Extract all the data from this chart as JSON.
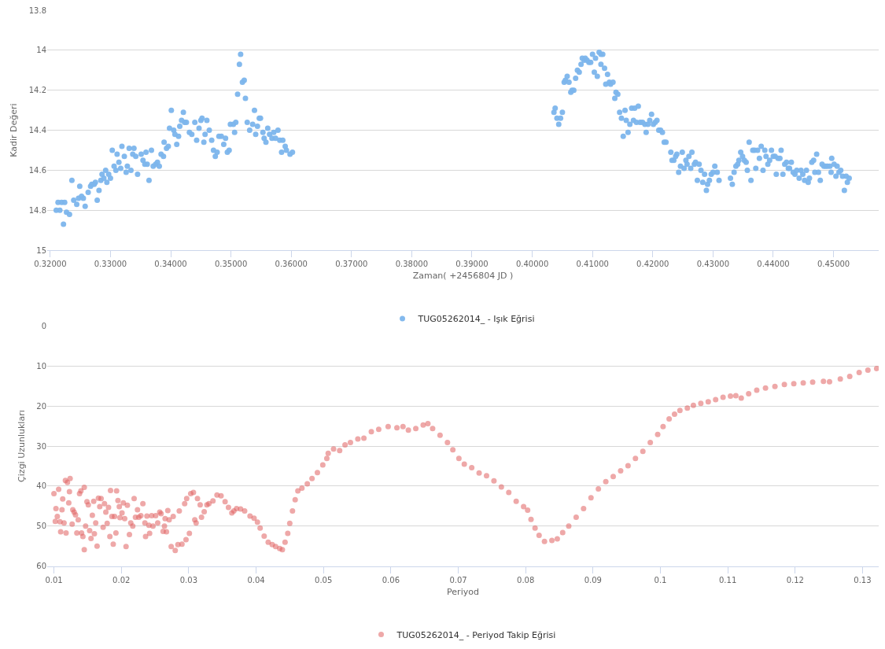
{
  "chart_data": [
    {
      "type": "scatter",
      "xlabel": "Zaman( +2456804 JD )",
      "ylabel": "Kadir Değeri",
      "marker": "circle",
      "grid": "y",
      "legend": "bottom",
      "xlim": [
        0.3195,
        0.4575
      ],
      "xticks": [
        {
          "value": 0.32,
          "label": "0.32000"
        },
        {
          "value": 0.33,
          "label": "0.33000"
        },
        {
          "value": 0.34,
          "label": "0.34000"
        },
        {
          "value": 0.35,
          "label": "0.35000"
        },
        {
          "value": 0.36,
          "label": "0.36000"
        },
        {
          "value": 0.37,
          "label": "0.37000"
        },
        {
          "value": 0.38,
          "label": "0.38000"
        },
        {
          "value": 0.39,
          "label": "0.39000"
        },
        {
          "value": 0.4,
          "label": "0.40000"
        },
        {
          "value": 0.41,
          "label": "0.41000"
        },
        {
          "value": 0.42,
          "label": "0.42000"
        },
        {
          "value": 0.43,
          "label": "0.43000"
        },
        {
          "value": 0.44,
          "label": "0.44000"
        },
        {
          "value": 0.45,
          "label": "0.45000"
        }
      ],
      "ylim": [
        15,
        13.8
      ],
      "yticks": [
        13.8,
        14,
        14.2,
        14.4,
        14.6,
        14.8,
        15
      ],
      "series": [
        {
          "name": "TUG05262014_ - Işık Eğrisi",
          "color": "#7cb5ec",
          "x": [
            0.321,
            0.3213,
            0.3216,
            0.3219,
            0.3222,
            0.3224,
            0.3227,
            0.3232,
            0.3236,
            0.3239,
            0.3244,
            0.3247,
            0.3249,
            0.3252,
            0.3255,
            0.3258,
            0.3263,
            0.3267,
            0.3269,
            0.3273,
            0.3275,
            0.3278,
            0.3281,
            0.3284,
            0.3286,
            0.3289,
            0.3292,
            0.3294,
            0.3297,
            0.33,
            0.3303,
            0.3306,
            0.3309,
            0.3311,
            0.3314,
            0.3317,
            0.3319,
            0.3323,
            0.3326,
            0.3328,
            0.3331,
            0.3334,
            0.3337,
            0.3339,
            0.3342,
            0.3345,
            0.3351,
            0.3354,
            0.3357,
            0.3359,
            0.3361,
            0.3364,
            0.3368,
            0.3371,
            0.3375,
            0.3378,
            0.3381,
            0.3384,
            0.3388,
            0.3389,
            0.3393,
            0.3396,
            0.3398,
            0.3401,
            0.3405,
            0.3407,
            0.341,
            0.3413,
            0.3415,
            0.3418,
            0.3421,
            0.3423,
            0.3426,
            0.3431,
            0.3435,
            0.344,
            0.3443,
            0.3447,
            0.345,
            0.3452,
            0.3455,
            0.3457,
            0.346,
            0.3464,
            0.3468,
            0.3471,
            0.3474,
            0.3477,
            0.348,
            0.3484,
            0.3488,
            0.3491,
            0.3494,
            0.3497,
            0.3499,
            0.3504,
            0.3506,
            0.3508,
            0.3511,
            0.3514,
            0.3516,
            0.3519,
            0.3522,
            0.3524,
            0.3527,
            0.3531,
            0.3536,
            0.3539,
            0.3541,
            0.3544,
            0.3547,
            0.3549,
            0.3553,
            0.3555,
            0.3558,
            0.3561,
            0.3564,
            0.3568,
            0.3571,
            0.3574,
            0.3578,
            0.3581,
            0.3584,
            0.3586,
            0.359,
            0.3592,
            0.3598,
            0.3602,
            0.4036,
            0.4038,
            0.4041,
            0.4044,
            0.4047,
            0.405,
            0.4053,
            0.4055,
            0.4058,
            0.4061,
            0.4064,
            0.4066,
            0.4069,
            0.4072,
            0.4075,
            0.4078,
            0.4081,
            0.4083,
            0.4086,
            0.4088,
            0.4091,
            0.4094,
            0.4097,
            0.41,
            0.4103,
            0.4105,
            0.4108,
            0.4111,
            0.4114,
            0.4117,
            0.4114,
            0.412,
            0.4122,
            0.4125,
            0.4128,
            0.413,
            0.4134,
            0.4137,
            0.4139,
            0.4142,
            0.4145,
            0.4148,
            0.4151,
            0.4154,
            0.4156,
            0.4159,
            0.4162,
            0.4165,
            0.4168,
            0.417,
            0.4173,
            0.4176,
            0.4179,
            0.4183,
            0.4187,
            0.4189,
            0.4192,
            0.4195,
            0.4198,
            0.4201,
            0.4204,
            0.4207,
            0.421,
            0.4213,
            0.4216,
            0.4219,
            0.4222,
            0.423,
            0.4232,
            0.4235,
            0.4238,
            0.424,
            0.4243,
            0.4246,
            0.4249,
            0.4252,
            0.4255,
            0.4257,
            0.426,
            0.4263,
            0.4265,
            0.4269,
            0.4271,
            0.4274,
            0.4277,
            0.428,
            0.4283,
            0.4286,
            0.4289,
            0.4291,
            0.4294,
            0.4297,
            0.43,
            0.4303,
            0.4307,
            0.431,
            0.4329,
            0.4332,
            0.4335,
            0.4338,
            0.4341,
            0.4343,
            0.4346,
            0.4349,
            0.4352,
            0.4355,
            0.4357,
            0.436,
            0.4363,
            0.4366,
            0.4369,
            0.4371,
            0.4374,
            0.4377,
            0.438,
            0.4383,
            0.4386,
            0.4388,
            0.4391,
            0.4394,
            0.4397,
            0.44,
            0.4403,
            0.4405,
            0.4408,
            0.4411,
            0.4413,
            0.4416,
            0.4419,
            0.4422,
            0.4425,
            0.4427,
            0.443,
            0.4433,
            0.4436,
            0.4439,
            0.4443,
            0.4446,
            0.4449,
            0.4452,
            0.4455,
            0.4458,
            0.446,
            0.4464,
            0.4467,
            0.4469,
            0.4472,
            0.4475,
            0.4478,
            0.4481,
            0.4484,
            0.4487,
            0.449,
            0.4494,
            0.4496,
            0.4497,
            0.4501,
            0.4504,
            0.4506,
            0.4509,
            0.4512,
            0.4515,
            0.4518,
            0.4521,
            0.4523,
            0.4526
          ],
          "values": [
            14.8,
            14.76,
            14.8,
            14.76,
            14.87,
            14.76,
            14.81,
            14.82,
            14.65,
            14.75,
            14.77,
            14.74,
            14.68,
            14.73,
            14.74,
            14.78,
            14.71,
            14.68,
            14.67,
            14.67,
            14.66,
            14.75,
            14.7,
            14.65,
            14.62,
            14.64,
            14.6,
            14.66,
            14.62,
            14.64,
            14.5,
            14.58,
            14.6,
            14.52,
            14.56,
            14.59,
            14.48,
            14.53,
            14.61,
            14.58,
            14.49,
            14.6,
            14.52,
            14.49,
            14.53,
            14.62,
            14.52,
            14.55,
            14.57,
            14.51,
            14.57,
            14.65,
            14.5,
            14.58,
            14.57,
            14.56,
            14.58,
            14.52,
            14.53,
            14.46,
            14.49,
            14.48,
            14.39,
            14.3,
            14.4,
            14.42,
            14.47,
            14.43,
            14.38,
            14.35,
            14.31,
            14.36,
            14.36,
            14.41,
            14.42,
            14.36,
            14.45,
            14.39,
            14.35,
            14.34,
            14.46,
            14.42,
            14.35,
            14.4,
            14.45,
            14.5,
            14.53,
            14.51,
            14.43,
            14.43,
            14.47,
            14.44,
            14.51,
            14.5,
            14.37,
            14.37,
            14.41,
            14.36,
            14.22,
            14.07,
            14.02,
            14.16,
            14.15,
            14.24,
            14.36,
            14.4,
            14.37,
            14.3,
            14.42,
            14.38,
            14.34,
            14.34,
            14.41,
            14.44,
            14.46,
            14.39,
            14.42,
            14.44,
            14.41,
            14.44,
            14.4,
            14.45,
            14.51,
            14.45,
            14.48,
            14.5,
            14.52,
            14.51,
            14.31,
            14.29,
            14.34,
            14.37,
            14.34,
            14.31,
            14.16,
            14.15,
            14.13,
            14.16,
            14.21,
            14.2,
            14.2,
            14.14,
            14.1,
            14.11,
            14.07,
            14.04,
            14.05,
            14.04,
            14.05,
            14.06,
            14.06,
            14.02,
            14.11,
            14.04,
            14.13,
            14.01,
            14.02,
            14.02,
            14.07,
            14.09,
            14.17,
            14.12,
            14.16,
            14.17,
            14.16,
            14.24,
            14.21,
            14.22,
            14.31,
            14.34,
            14.43,
            14.3,
            14.35,
            14.41,
            14.37,
            14.29,
            14.35,
            14.29,
            14.36,
            14.28,
            14.36,
            14.36,
            14.37,
            14.41,
            14.37,
            14.35,
            14.32,
            14.37,
            14.36,
            14.35,
            14.4,
            14.4,
            14.41,
            14.46,
            14.46,
            14.51,
            14.55,
            14.55,
            14.53,
            14.52,
            14.61,
            14.58,
            14.51,
            14.59,
            14.55,
            14.57,
            14.53,
            14.59,
            14.51,
            14.57,
            14.56,
            14.65,
            14.57,
            14.6,
            14.66,
            14.62,
            14.7,
            14.67,
            14.65,
            14.62,
            14.61,
            14.58,
            14.61,
            14.65,
            14.64,
            14.67,
            14.61,
            14.58,
            14.57,
            14.55,
            14.51,
            14.53,
            14.55,
            14.56,
            14.6,
            14.46,
            14.65,
            14.5,
            14.5,
            14.59,
            14.5,
            14.54,
            14.48,
            14.6,
            14.5,
            14.53,
            14.57,
            14.55,
            14.5,
            14.53,
            14.53,
            14.62,
            14.54,
            14.54,
            14.5,
            14.62,
            14.57,
            14.56,
            14.59,
            14.59,
            14.56,
            14.61,
            14.62,
            14.6,
            14.64,
            14.6,
            14.62,
            14.65,
            14.6,
            14.66,
            14.64,
            14.56,
            14.55,
            14.61,
            14.52,
            14.61,
            14.65,
            14.57,
            14.58,
            14.58,
            14.58,
            14.58,
            14.61,
            14.54,
            14.57,
            14.63,
            14.58,
            14.61,
            14.6,
            14.63,
            14.7,
            14.63,
            14.66,
            14.64
          ]
        }
      ]
    },
    {
      "type": "scatter",
      "xlabel": "Periyod",
      "ylabel": "Çizgi Uzunlukları",
      "marker": "circle",
      "grid": "y",
      "legend": "bottom",
      "xlim": [
        0.009,
        0.1324
      ],
      "xticks": [
        0.01,
        0.02,
        0.03,
        0.04,
        0.05,
        0.06,
        0.07,
        0.08,
        0.09,
        0.1,
        0.11,
        0.12,
        0.13
      ],
      "ylim": [
        60,
        0
      ],
      "yticks": [
        0,
        10,
        20,
        30,
        40,
        50,
        60
      ],
      "series": [
        {
          "name": "TUG05262014_ - Periyod Takip Eğrisi",
          "color": "#e06060",
          "x": [
            0.01,
            0.0102,
            0.0103,
            0.0105,
            0.0107,
            0.0109,
            0.011,
            0.0112,
            0.0113,
            0.0115,
            0.0117,
            0.0118,
            0.012,
            0.0122,
            0.0123,
            0.0124,
            0.0127,
            0.0128,
            0.013,
            0.0132,
            0.0134,
            0.0136,
            0.0138,
            0.014,
            0.0141,
            0.0143,
            0.0145,
            0.0145,
            0.0147,
            0.0149,
            0.0151,
            0.0153,
            0.0155,
            0.0157,
            0.0159,
            0.016,
            0.0162,
            0.0164,
            0.0166,
            0.0168,
            0.017,
            0.0173,
            0.0175,
            0.0177,
            0.0179,
            0.0181,
            0.0183,
            0.0184,
            0.0186,
            0.0188,
            0.019,
            0.0192,
            0.0193,
            0.0195,
            0.0197,
            0.0198,
            0.0201,
            0.0203,
            0.0205,
            0.0207,
            0.0209,
            0.0212,
            0.0214,
            0.0217,
            0.0219,
            0.0221,
            0.0224,
            0.0226,
            0.0229,
            0.0232,
            0.0235,
            0.0236,
            0.0238,
            0.0241,
            0.0242,
            0.0245,
            0.0247,
            0.0251,
            0.0254,
            0.0257,
            0.0259,
            0.0262,
            0.0264,
            0.0265,
            0.0267,
            0.0269,
            0.0271,
            0.0274,
            0.0277,
            0.028,
            0.0284,
            0.0286,
            0.029,
            0.0294,
            0.0296,
            0.0297,
            0.0301,
            0.0303,
            0.0307,
            0.0309,
            0.0311,
            0.0313,
            0.0317,
            0.0319,
            0.0323,
            0.0327,
            0.033,
            0.0336,
            0.0342,
            0.0348,
            0.0354,
            0.0359,
            0.0364,
            0.0367,
            0.0371,
            0.0377,
            0.0383,
            0.0391,
            0.0397,
            0.0402,
            0.0406,
            0.0412,
            0.0418,
            0.0424,
            0.0429,
            0.0435,
            0.0439,
            0.0443,
            0.0447,
            0.045,
            0.0454,
            0.0458,
            0.0462,
            0.0468,
            0.0476,
            0.0483,
            0.0491,
            0.0499,
            0.0505,
            0.0507,
            0.0515,
            0.0524,
            0.0532,
            0.054,
            0.0551,
            0.056,
            0.0571,
            0.0582,
            0.0596,
            0.0609,
            0.0618,
            0.0626,
            0.0637,
            0.0648,
            0.0655,
            0.0662,
            0.0673,
            0.0684,
            0.0692,
            0.0701,
            0.0709,
            0.072,
            0.0731,
            0.0742,
            0.0753,
            0.0764,
            0.0775,
            0.0786,
            0.0797,
            0.0803,
            0.0808,
            0.0814,
            0.082,
            0.0828,
            0.0839,
            0.0847,
            0.0855,
            0.0864,
            0.0875,
            0.0886,
            0.0897,
            0.0908,
            0.0919,
            0.093,
            0.0941,
            0.0952,
            0.0963,
            0.0974,
            0.0985,
            0.0996,
            0.1004,
            0.1013,
            0.1021,
            0.1029,
            0.104,
            0.1049,
            0.106,
            0.1071,
            0.1082,
            0.1093,
            0.1104,
            0.1112,
            0.112,
            0.1131,
            0.1143,
            0.1156,
            0.117,
            0.1184,
            0.1198,
            0.1212,
            0.1226,
            0.1242,
            0.1251,
            0.1267,
            0.1281,
            0.1295,
            0.1308,
            0.1321
          ],
          "values": [
            41.9,
            48.8,
            45.6,
            47.6,
            40.8,
            48.9,
            51.4,
            45.9,
            43.2,
            49.2,
            38.6,
            51.7,
            39.1,
            44.2,
            41.4,
            38.1,
            49.5,
            45.9,
            46.5,
            47.2,
            51.7,
            48.4,
            41.9,
            41.2,
            51.7,
            52.6,
            40.3,
            55.9,
            50.0,
            43.9,
            44.7,
            51.1,
            53.1,
            47.3,
            43.8,
            51.9,
            49.2,
            55.0,
            43.0,
            45.1,
            43.1,
            50.3,
            44.4,
            46.5,
            49.3,
            45.3,
            52.6,
            41.1,
            47.6,
            54.5,
            47.6,
            51.7,
            41.2,
            43.6,
            45.1,
            47.9,
            46.7,
            44.2,
            48.1,
            55.1,
            44.8,
            52.1,
            49.2,
            50.0,
            43.1,
            47.8,
            45.9,
            47.8,
            47.4,
            44.4,
            49.2,
            52.6,
            47.5,
            49.8,
            51.8,
            47.4,
            50.0,
            47.4,
            49.2,
            46.5,
            46.9,
            51.3,
            50.0,
            48.1,
            51.4,
            46.1,
            48.4,
            55.1,
            47.6,
            56.1,
            54.6,
            46.2,
            54.5,
            44.4,
            53.4,
            43.1,
            51.8,
            41.9,
            41.6,
            48.4,
            49.2,
            43.1,
            44.7,
            47.8,
            46.4,
            44.7,
            44.4,
            43.7,
            42.2,
            42.4,
            43.9,
            45.3,
            46.7,
            46.2,
            45.6,
            45.7,
            46.2,
            47.5,
            48.0,
            49.0,
            50.5,
            52.5,
            54.0,
            54.6,
            55.1,
            55.6,
            55.9,
            54.0,
            51.8,
            49.3,
            46.2,
            43.4,
            41.2,
            40.5,
            39.4,
            38.1,
            36.6,
            34.7,
            33.1,
            31.8,
            30.7,
            31.1,
            29.7,
            29.1,
            28.2,
            28.0,
            26.4,
            25.8,
            25.1,
            25.4,
            25.1,
            26.0,
            25.6,
            24.7,
            24.4,
            25.6,
            27.3,
            29.1,
            30.9,
            33.1,
            34.5,
            35.4,
            36.7,
            37.4,
            38.7,
            40.2,
            41.6,
            43.8,
            45.1,
            46.0,
            48.3,
            50.5,
            52.3,
            53.8,
            53.6,
            53.2,
            51.6,
            50.0,
            47.8,
            45.6,
            42.9,
            40.7,
            38.9,
            37.6,
            36.2,
            34.9,
            33.1,
            31.3,
            29.1,
            27.1,
            25.1,
            23.2,
            22.0,
            21.1,
            20.5,
            19.8,
            19.3,
            18.9,
            18.4,
            17.8,
            17.5,
            17.4,
            18.0,
            16.9,
            16.0,
            15.5,
            15.1,
            14.6,
            14.4,
            14.2,
            14.0,
            13.8,
            13.9,
            13.2,
            12.6,
            11.6,
            11.0,
            10.6
          ]
        }
      ]
    }
  ]
}
